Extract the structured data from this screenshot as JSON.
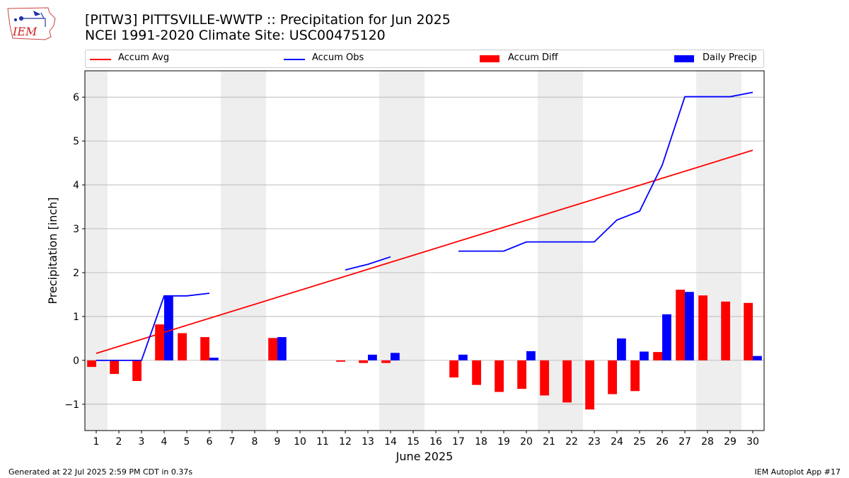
{
  "title_line1": "[PITW3] PITTSVILLE-WWTP :: Precipitation for Jun 2025",
  "title_line2": "NCEI 1991-2020 Climate Site: USC00475120",
  "logo": {
    "text": "IEM",
    "icon": "iowa-state-map-logo"
  },
  "legend": {
    "accum_avg": "Accum Avg",
    "accum_obs": "Accum Obs",
    "accum_diff": "Accum Diff",
    "daily_precip": "Daily Precip"
  },
  "footer": {
    "left": "Generated at 22 Jul 2025 2:59 PM CDT in 0.37s",
    "right": "IEM Autoplot App #17"
  },
  "colors": {
    "avg": "#ff0000",
    "obs": "#0000ff",
    "diff": "#ff0000",
    "daily": "#0000ff",
    "weekend_shade": "#eeeeee",
    "grid": "#b0b0b0"
  },
  "chart_data": {
    "type": "bar",
    "xlabel": "June 2025",
    "ylabel": "Precipitation [inch]",
    "xlim": [
      0.5,
      30.5
    ],
    "ylim": [
      -1.6,
      6.6
    ],
    "yticks": [
      -1,
      0,
      1,
      2,
      3,
      4,
      5,
      6
    ],
    "ytick_labels": [
      "−1",
      "0",
      "1",
      "2",
      "3",
      "4",
      "5",
      "6"
    ],
    "grid": "horizontal",
    "legend_position": "top",
    "categories": [
      "1",
      "2",
      "3",
      "4",
      "5",
      "6",
      "7",
      "8",
      "9",
      "10",
      "11",
      "12",
      "13",
      "14",
      "15",
      "16",
      "17",
      "18",
      "19",
      "20",
      "21",
      "22",
      "23",
      "24",
      "25",
      "26",
      "27",
      "28",
      "29",
      "30"
    ],
    "weekend_days": [
      1,
      7,
      8,
      14,
      15,
      21,
      22,
      28,
      29
    ],
    "series": [
      {
        "name": "Accum Avg",
        "kind": "line",
        "x": [
          1,
          30
        ],
        "values": [
          0.16,
          4.79
        ]
      },
      {
        "name": "Accum Obs",
        "kind": "line",
        "segments": [
          {
            "x": [
              1,
              2,
              3,
              4,
              5,
              6
            ],
            "values": [
              0.0,
              0.0,
              0.0,
              1.47,
              1.47,
              1.53
            ]
          },
          {
            "x": [
              12,
              13,
              14
            ],
            "values": [
              2.06,
              2.19,
              2.36
            ]
          },
          {
            "x": [
              17,
              18,
              19,
              20,
              21,
              22,
              23,
              24,
              25,
              26,
              27,
              28,
              29,
              30
            ],
            "values": [
              2.49,
              2.49,
              2.49,
              2.7,
              2.7,
              2.7,
              2.7,
              3.2,
              3.4,
              4.45,
              6.01,
              6.01,
              6.01,
              6.11
            ]
          }
        ]
      },
      {
        "name": "Accum Diff",
        "kind": "bar",
        "x": [
          1,
          2,
          3,
          4,
          5,
          6,
          9,
          12,
          13,
          14,
          17,
          18,
          19,
          20,
          21,
          22,
          23,
          24,
          25,
          26,
          27,
          28,
          29,
          30
        ],
        "values": [
          -0.15,
          -0.31,
          -0.47,
          0.82,
          0.62,
          0.53,
          0.51,
          -0.03,
          -0.06,
          -0.06,
          -0.39,
          -0.56,
          -0.72,
          -0.65,
          -0.8,
          -0.96,
          -1.12,
          -0.77,
          -0.7,
          0.19,
          1.61,
          1.48,
          1.34,
          1.31
        ]
      },
      {
        "name": "Daily Precip",
        "kind": "bar",
        "x": [
          4,
          6,
          9,
          13,
          14,
          17,
          20,
          24,
          25,
          26,
          27,
          30
        ],
        "values": [
          1.47,
          0.06,
          0.53,
          0.13,
          0.17,
          0.13,
          0.21,
          0.5,
          0.2,
          1.05,
          1.56,
          0.1
        ]
      }
    ]
  }
}
